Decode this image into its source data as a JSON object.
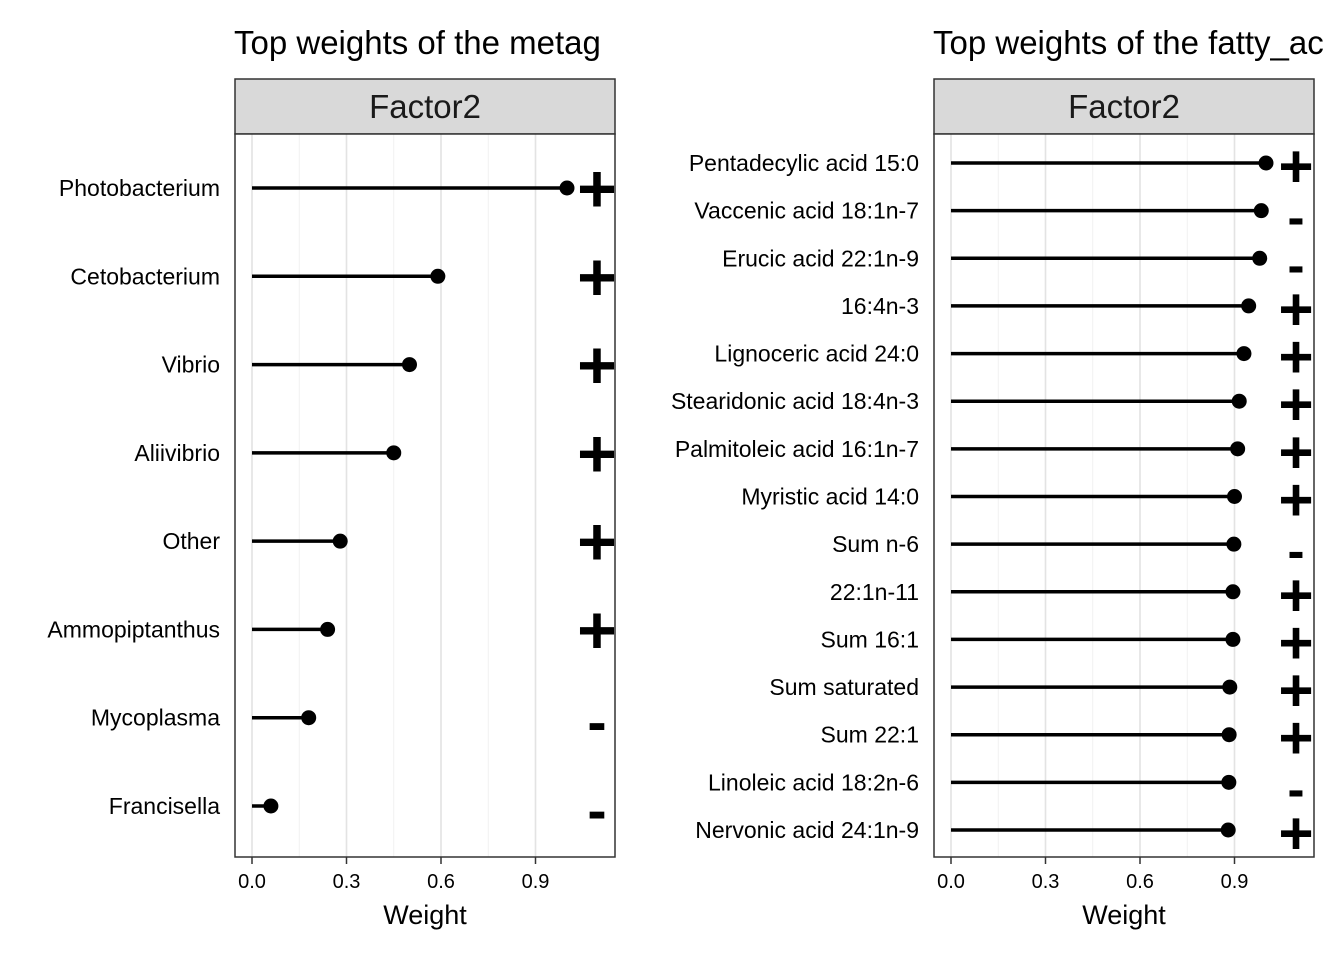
{
  "chart_data": [
    {
      "type": "lollipop",
      "title": "Top weights of the metag",
      "facet_label": "Factor2",
      "xlabel": "Weight",
      "xlim": [
        0,
        1.0
      ],
      "x_ticks": [
        "0.0",
        "0.3",
        "0.6",
        "0.9"
      ],
      "x_tick_values": [
        0.0,
        0.3,
        0.6,
        0.9
      ],
      "grid": true,
      "categories": [
        "Photobacterium",
        "Cetobacterium",
        "Vibrio",
        "Aliivibrio",
        "Other",
        "Ammopiptanthus",
        "Mycoplasma",
        "Francisella"
      ],
      "values": [
        1.0,
        0.59,
        0.5,
        0.45,
        0.28,
        0.24,
        0.18,
        0.06
      ],
      "signs": [
        "+",
        "+",
        "+",
        "+",
        "+",
        "+",
        "-",
        "-"
      ]
    },
    {
      "type": "lollipop",
      "title": "Top weights of the fatty_ac",
      "facet_label": "Factor2",
      "xlabel": "Weight",
      "xlim": [
        0,
        1.0
      ],
      "x_ticks": [
        "0.0",
        "0.3",
        "0.6",
        "0.9"
      ],
      "x_tick_values": [
        0.0,
        0.3,
        0.6,
        0.9
      ],
      "grid": true,
      "categories": [
        "Pentadecylic acid 15:0",
        "Vaccenic acid 18:1n-7",
        "Erucic acid 22:1n-9",
        "16:4n-3",
        "Lignoceric acid 24:0",
        "Stearidonic acid 18:4n-3",
        "Palmitoleic acid 16:1n-7",
        "Myristic acid 14:0",
        "Sum n-6",
        "22:1n-11",
        "Sum 16:1",
        "Sum saturated",
        "Sum 22:1",
        "Linoleic acid 18:2n-6",
        "Nervonic acid 24:1n-9"
      ],
      "values": [
        1.0,
        0.985,
        0.98,
        0.945,
        0.93,
        0.915,
        0.91,
        0.9,
        0.898,
        0.895,
        0.895,
        0.885,
        0.883,
        0.882,
        0.88
      ],
      "signs": [
        "+",
        "-",
        "-",
        "+",
        "+",
        "+",
        "+",
        "+",
        "-",
        "+",
        "+",
        "+",
        "+",
        "-",
        "+"
      ]
    }
  ]
}
